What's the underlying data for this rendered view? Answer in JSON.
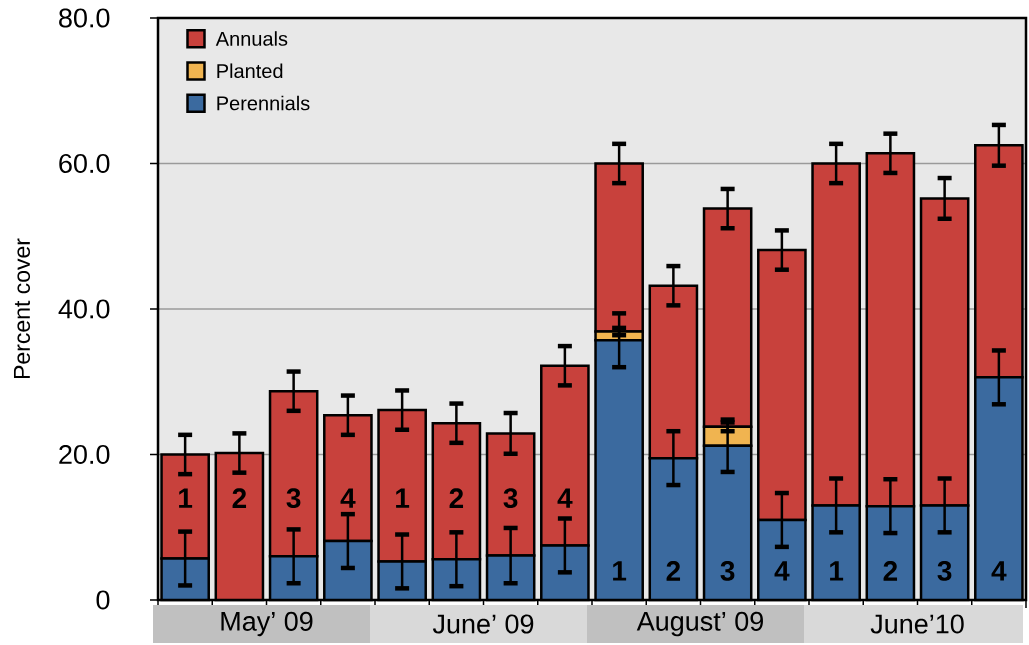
{
  "chart_data": {
    "type": "bar",
    "stacked": true,
    "ylabel": "Percent cover",
    "categories": [
      "1",
      "2",
      "3",
      "4",
      "1",
      "2",
      "3",
      "4",
      "1",
      "2",
      "3",
      "4",
      "1",
      "2",
      "3",
      "4"
    ],
    "series": [
      {
        "name": "Perennials",
        "color": "#3b6a9f",
        "values": [
          5.7,
          0,
          6.0,
          8.1,
          5.3,
          5.6,
          6.1,
          7.5,
          35.7,
          19.5,
          21.2,
          11.0,
          13.0,
          12.9,
          13.0,
          30.6
        ],
        "errors": [
          3.7,
          null,
          3.7,
          3.7,
          3.7,
          3.7,
          3.8,
          3.7,
          3.7,
          3.7,
          3.6,
          3.7,
          3.7,
          3.7,
          3.7,
          3.7
        ]
      },
      {
        "name": "Planted",
        "color": "#f0b450",
        "values": [
          0,
          0,
          0,
          0,
          0,
          0,
          0,
          0,
          1.2,
          0,
          2.6,
          0,
          0,
          0,
          0,
          0
        ],
        "errors": [
          null,
          null,
          null,
          null,
          null,
          null,
          null,
          null,
          0.5,
          null,
          0.6,
          null,
          null,
          null,
          null,
          null
        ]
      },
      {
        "name": "Annuals",
        "color": "#c8413c",
        "values": [
          14.3,
          20.2,
          22.7,
          17.3,
          20.8,
          18.7,
          16.8,
          24.7,
          23.1,
          23.7,
          30.0,
          37.1,
          47.0,
          48.5,
          42.2,
          31.9
        ],
        "errors": [
          2.7,
          2.7,
          2.7,
          2.7,
          2.7,
          2.7,
          2.8,
          2.7,
          2.7,
          2.7,
          2.7,
          2.7,
          2.7,
          2.7,
          2.8,
          2.8
        ]
      }
    ],
    "ylim": [
      0,
      80
    ],
    "yticks": [
      0,
      {
        "value": 20,
        "label": "20.0"
      },
      {
        "value": 40,
        "label": "40.0"
      },
      {
        "value": 60,
        "label": "60.0"
      },
      {
        "value": 80,
        "label": "80.0"
      }
    ],
    "grid": "y",
    "legend": "top left",
    "annotations": [
      "May’ 09",
      "June’ 09",
      "August’ 09",
      "June’10"
    ]
  }
}
